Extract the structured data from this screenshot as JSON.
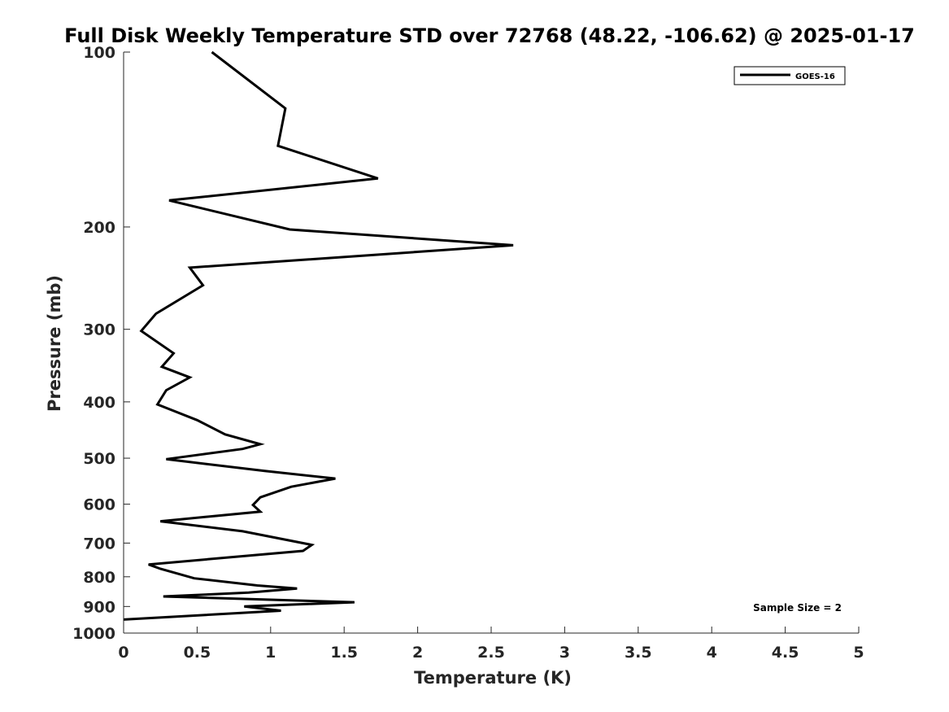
{
  "chart_data": {
    "type": "line",
    "title": "Full Disk Weekly Temperature STD over 72768 (48.22, -106.62) @ 2025-01-17",
    "xlabel": "Temperature (K)",
    "ylabel": "Pressure (mb)",
    "xlim": [
      0,
      5
    ],
    "ylim": [
      100,
      1000
    ],
    "y_scale": "log",
    "y_reversed": true,
    "grid": false,
    "x_ticks": [
      0,
      0.5,
      1,
      1.5,
      2,
      2.5,
      3,
      3.5,
      4,
      4.5,
      5
    ],
    "x_tick_labels": [
      "0",
      "0.5",
      "1",
      "1.5",
      "2",
      "2.5",
      "3",
      "3.5",
      "4",
      "4.5",
      "5"
    ],
    "y_ticks": [
      100,
      200,
      300,
      400,
      500,
      600,
      700,
      800,
      900,
      1000
    ],
    "y_tick_labels": [
      "100",
      "200",
      "300",
      "400",
      "500",
      "600",
      "700",
      "800",
      "900",
      "1000"
    ],
    "legend_position": "top-right",
    "series": [
      {
        "name": "GOES-16",
        "color": "#000000",
        "points": [
          [
            0.6,
            100
          ],
          [
            1.1,
            125
          ],
          [
            1.05,
            145
          ],
          [
            1.73,
            165
          ],
          [
            0.31,
            180
          ],
          [
            1.13,
            202
          ],
          [
            2.65,
            215
          ],
          [
            0.45,
            235
          ],
          [
            0.54,
            252
          ],
          [
            0.22,
            282
          ],
          [
            0.12,
            302
          ],
          [
            0.34,
            330
          ],
          [
            0.26,
            348
          ],
          [
            0.45,
            363
          ],
          [
            0.29,
            382
          ],
          [
            0.23,
            404
          ],
          [
            0.5,
            430
          ],
          [
            0.69,
            455
          ],
          [
            0.93,
            473
          ],
          [
            0.81,
            482
          ],
          [
            0.29,
            502
          ],
          [
            0.96,
            526
          ],
          [
            1.44,
            542
          ],
          [
            1.14,
            560
          ],
          [
            0.93,
            584
          ],
          [
            0.88,
            602
          ],
          [
            0.93,
            618
          ],
          [
            0.25,
            642
          ],
          [
            0.81,
            668
          ],
          [
            1.28,
            705
          ],
          [
            1.22,
            722
          ],
          [
            0.17,
            762
          ],
          [
            0.25,
            775
          ],
          [
            0.48,
            805
          ],
          [
            0.91,
            828
          ],
          [
            1.18,
            838
          ],
          [
            0.85,
            852
          ],
          [
            0.27,
            865
          ],
          [
            1.57,
            885
          ],
          [
            0.82,
            900
          ],
          [
            1.07,
            915
          ],
          [
            0.0,
            948
          ]
        ]
      }
    ],
    "annotations": [
      "Sample Size = 2"
    ]
  }
}
